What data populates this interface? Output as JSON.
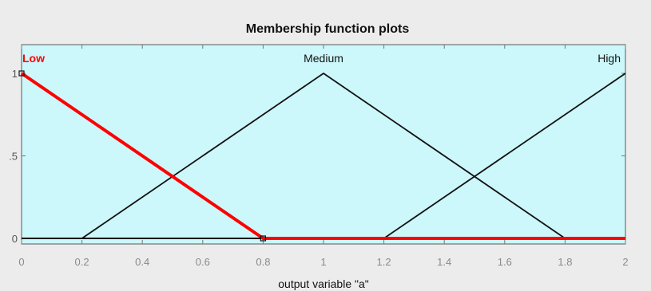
{
  "chart_data": {
    "type": "line",
    "title": "Membership function plots",
    "xlabel": "output variable \"a\"",
    "ylabel": "",
    "xlim": [
      0,
      2
    ],
    "ylim": [
      0,
      1
    ],
    "x_ticks": [
      "0",
      "0.2",
      "0.4",
      "0.6",
      "0.8",
      "1",
      "1.2",
      "1.4",
      "1.6",
      "1.8",
      "2"
    ],
    "y_ticks": [
      "0",
      ".5",
      "1"
    ],
    "grid": false,
    "background": "#ccf7fb",
    "series": [
      {
        "name": "Low",
        "color": "#ff0000",
        "selected": true,
        "x": [
          0,
          0.8,
          2
        ],
        "y": [
          1,
          0,
          0
        ]
      },
      {
        "name": "Medium",
        "color": "#111111",
        "selected": false,
        "x": [
          0.2,
          1,
          1.8
        ],
        "y": [
          0,
          1,
          0
        ]
      },
      {
        "name": "High",
        "color": "#111111",
        "selected": false,
        "x": [
          1.2,
          2
        ],
        "y": [
          0,
          1
        ]
      }
    ],
    "handles": [
      {
        "x": 0,
        "y": 1
      },
      {
        "x": 0.8,
        "y": 0
      }
    ]
  }
}
